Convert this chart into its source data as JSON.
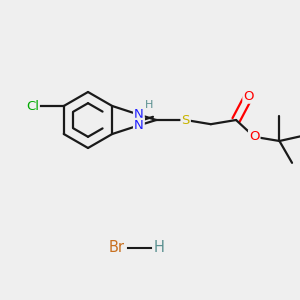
{
  "background_color": "#efefef",
  "bond_color": "#1a1a1a",
  "bond_width": 1.6,
  "atom_colors": {
    "C": "#1a1a1a",
    "N": "#2020ff",
    "O": "#ff0000",
    "S": "#c8b400",
    "Cl": "#00aa00",
    "Br": "#c87020",
    "H": "#5a9090"
  },
  "font_size": 9.5,
  "figsize": [
    3.0,
    3.0
  ],
  "dpi": 100
}
